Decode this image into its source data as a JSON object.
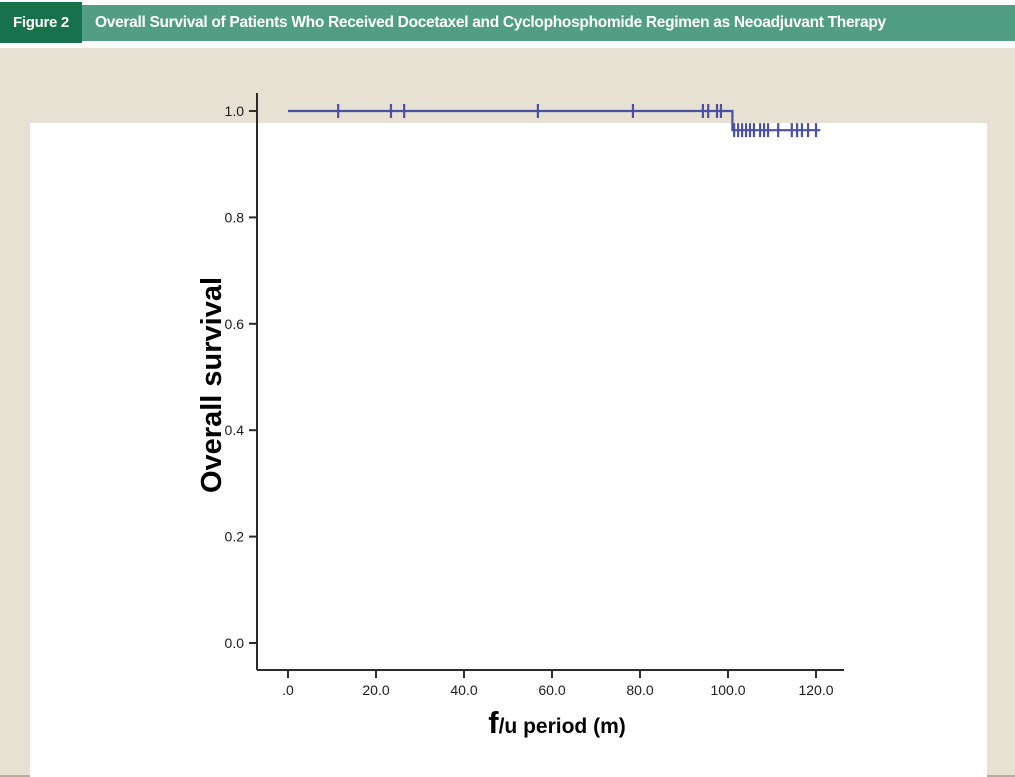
{
  "figure": {
    "label": "Figure 2",
    "title": "Overall Survival of Patients Who Received Docetaxel and Cyclophosphomide Regimen as Neoadjuvant Therapy"
  },
  "colors": {
    "header_bar": "#519e85",
    "header_label_bg": "#17714a",
    "panel_bg": "#e7e1d3",
    "card_bg": "#ffffff",
    "curve": "#4b50a3",
    "axis": "#2b2b2b",
    "tick_text": "#1c1c1c"
  },
  "chart_data": {
    "type": "line",
    "subtype": "kaplan-meier-step",
    "title": "",
    "xlabel": "f/u period (m)",
    "xlabel_parts": {
      "lead": "f",
      "rest": "/u period (m)"
    },
    "ylabel": "Overall survival",
    "xlim": [
      0,
      120
    ],
    "ylim": [
      0.0,
      1.0
    ],
    "grid": false,
    "legend": "none",
    "x_ticks": [
      {
        "value": 0,
        "label": ".0"
      },
      {
        "value": 20,
        "label": "20.0"
      },
      {
        "value": 40,
        "label": "40.0"
      },
      {
        "value": 60,
        "label": "60.0"
      },
      {
        "value": 80,
        "label": "80.0"
      },
      {
        "value": 100,
        "label": "100.0"
      },
      {
        "value": 120,
        "label": "120.0"
      }
    ],
    "y_ticks": [
      {
        "value": 1.0,
        "label": "1.0"
      },
      {
        "value": 0.8,
        "label": "0.8"
      },
      {
        "value": 0.6,
        "label": "0.6"
      },
      {
        "value": 0.4,
        "label": "0.4"
      },
      {
        "value": 0.2,
        "label": "0.2"
      },
      {
        "value": 0.0,
        "label": "0.0"
      }
    ],
    "series": [
      {
        "name": "Overall survival",
        "color": "#4b50a3",
        "step_points": [
          [
            0,
            1.0
          ],
          [
            101,
            1.0
          ],
          [
            101,
            0.964
          ],
          [
            121,
            0.964
          ]
        ],
        "events": [
          {
            "x": 101,
            "survival_before": 1.0,
            "survival_after": 0.964
          }
        ],
        "censored": [
          {
            "x": 11.4,
            "y": 1.0
          },
          {
            "x": 23.4,
            "y": 1.0
          },
          {
            "x": 26.4,
            "y": 1.0
          },
          {
            "x": 56.8,
            "y": 1.0
          },
          {
            "x": 78.4,
            "y": 1.0
          },
          {
            "x": 94.3,
            "y": 1.0
          },
          {
            "x": 95.5,
            "y": 1.0
          },
          {
            "x": 97.5,
            "y": 1.0
          },
          {
            "x": 98.4,
            "y": 1.0
          },
          {
            "x": 101.4,
            "y": 0.964
          },
          {
            "x": 102.3,
            "y": 0.964
          },
          {
            "x": 103.2,
            "y": 0.964
          },
          {
            "x": 104.1,
            "y": 0.964
          },
          {
            "x": 105.0,
            "y": 0.964
          },
          {
            "x": 105.9,
            "y": 0.964
          },
          {
            "x": 107.3,
            "y": 0.964
          },
          {
            "x": 108.2,
            "y": 0.964
          },
          {
            "x": 109.1,
            "y": 0.964
          },
          {
            "x": 111.4,
            "y": 0.964
          },
          {
            "x": 114.5,
            "y": 0.964
          },
          {
            "x": 115.7,
            "y": 0.964
          },
          {
            "x": 116.8,
            "y": 0.964
          },
          {
            "x": 118.2,
            "y": 0.964
          },
          {
            "x": 120.0,
            "y": 0.964
          }
        ]
      }
    ]
  }
}
